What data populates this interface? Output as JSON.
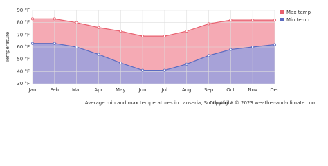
{
  "chart_data": {
    "type": "area",
    "caption": "Average min and max temperatures in Lanseria, South Africa",
    "copyright": "Copyright © 2023  weather-and-climate.com",
    "y_label": "Temperature",
    "categories": [
      "Jan",
      "Feb",
      "Mar",
      "Apr",
      "May",
      "Jun",
      "Jul",
      "Aug",
      "Sep",
      "Oct",
      "Nov",
      "Dec"
    ],
    "series": [
      {
        "name": "Max temp",
        "color": "#e8606e",
        "fill": "#f5aab4",
        "values": [
          83,
          83,
          80,
          76,
          73,
          69,
          69,
          73,
          79,
          82,
          82,
          82
        ]
      },
      {
        "name": "Min temp",
        "color": "#5b6bc0",
        "fill": "#a7a2d8",
        "values": [
          63,
          63,
          60,
          54,
          47,
          41,
          41,
          46,
          53,
          58,
          60,
          62
        ]
      }
    ],
    "ylim": [
      30,
      90
    ],
    "yticks": [
      {
        "value": 30,
        "label": "30 °F"
      },
      {
        "value": 40,
        "label": "40 °F"
      },
      {
        "value": 50,
        "label": "50 °F"
      },
      {
        "value": 60,
        "label": "60 °F"
      },
      {
        "value": 70,
        "label": "70 °F"
      },
      {
        "value": 80,
        "label": "80 °F"
      },
      {
        "value": 90,
        "label": "90 °F"
      }
    ],
    "grid": true
  }
}
